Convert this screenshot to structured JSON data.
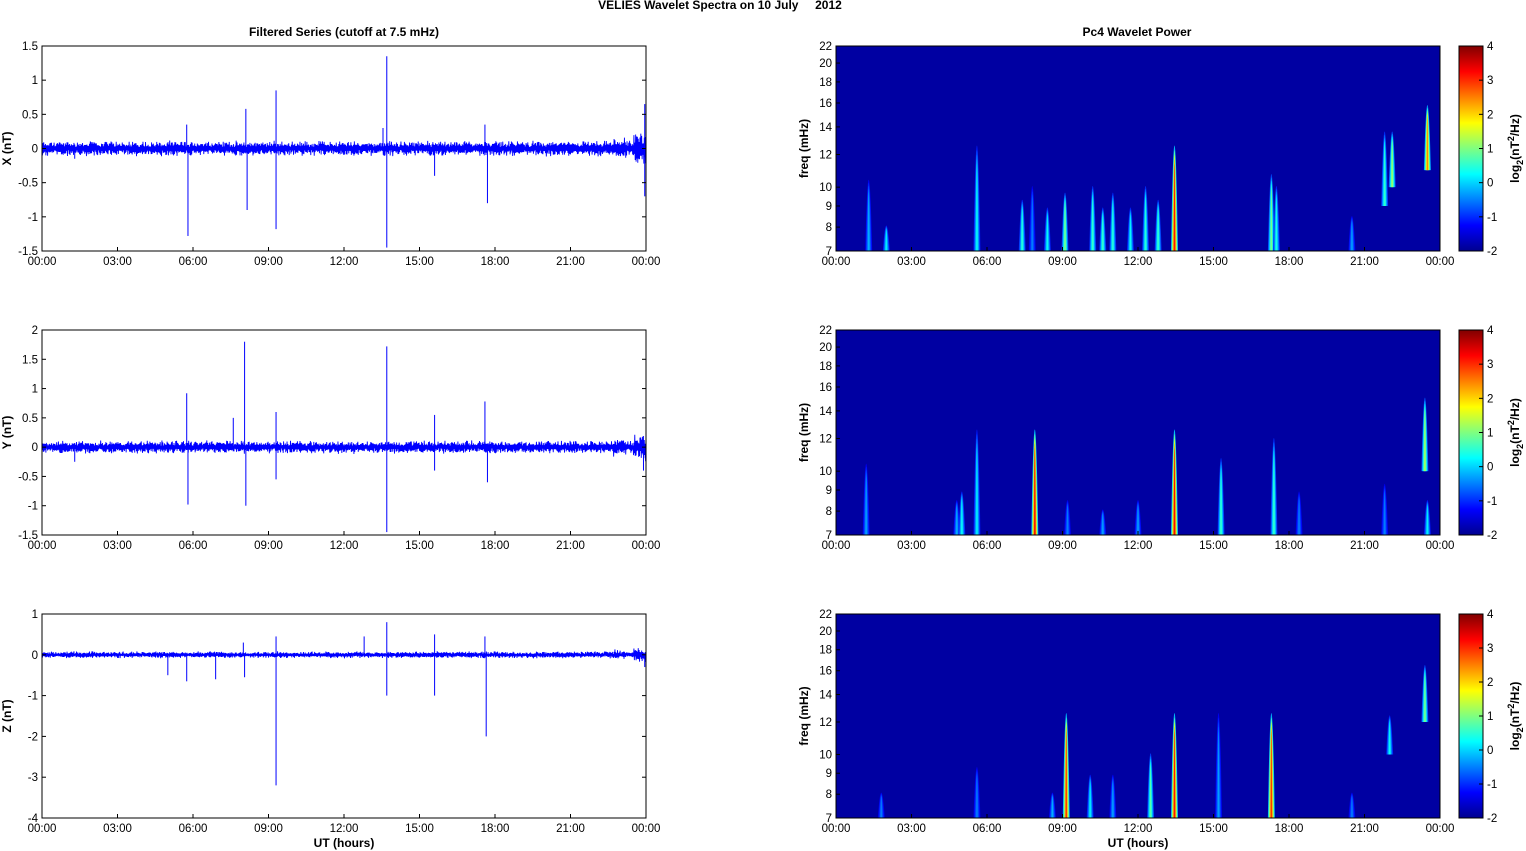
{
  "figure": {
    "main_title": "VELIES Wavelet Spectra on 10 July     2012",
    "left_title": "Filtered Series (cutoff at 7.5 mHz)",
    "right_title": "Pc4 Wavelet Power"
  },
  "chart_data": [
    {
      "type": "line",
      "ylabel": "X (nT)",
      "ylim": [
        -1.5,
        1.5
      ],
      "yticks": [
        "1.5",
        "1",
        "0.5",
        "0",
        "-0.5",
        "-1",
        "-1.5"
      ],
      "xticks": [
        "00:00",
        "03:00",
        "06:00",
        "09:00",
        "12:00",
        "15:00",
        "18:00",
        "21:00",
        "00:00"
      ],
      "xlim_hours": [
        0,
        24
      ],
      "noise_amplitude": 0.12,
      "color": "#0000ff",
      "spikes": [
        [
          1.3,
          -0.15
        ],
        [
          5.75,
          0.35
        ],
        [
          5.8,
          -1.28
        ],
        [
          8.1,
          0.58
        ],
        [
          8.15,
          -0.9
        ],
        [
          9.3,
          0.85
        ],
        [
          9.3,
          -1.18
        ],
        [
          13.7,
          1.35
        ],
        [
          13.7,
          -1.45
        ],
        [
          13.55,
          0.3
        ],
        [
          15.6,
          -0.4
        ],
        [
          17.6,
          0.35
        ],
        [
          17.7,
          -0.8
        ],
        [
          23.95,
          0.65
        ],
        [
          23.95,
          -0.7
        ]
      ]
    },
    {
      "type": "line",
      "ylabel": "Y (nT)",
      "ylim": [
        -1.5,
        2
      ],
      "yticks": [
        "2",
        "1.5",
        "1",
        "0.5",
        "0",
        "-0.5",
        "-1",
        "-1.5"
      ],
      "xticks": [
        "00:00",
        "03:00",
        "06:00",
        "09:00",
        "12:00",
        "15:00",
        "18:00",
        "21:00",
        "00:00"
      ],
      "xlim_hours": [
        0,
        24
      ],
      "noise_amplitude": 0.12,
      "color": "#0000ff",
      "spikes": [
        [
          1.3,
          -0.25
        ],
        [
          5.75,
          0.92
        ],
        [
          5.8,
          -0.98
        ],
        [
          7.6,
          0.5
        ],
        [
          8.05,
          1.8
        ],
        [
          8.1,
          -1.0
        ],
        [
          9.3,
          0.6
        ],
        [
          9.3,
          -0.55
        ],
        [
          13.7,
          1.72
        ],
        [
          13.7,
          -1.45
        ],
        [
          15.6,
          0.55
        ],
        [
          15.6,
          -0.4
        ],
        [
          17.6,
          0.78
        ],
        [
          17.7,
          -0.6
        ],
        [
          23.9,
          -0.4
        ]
      ]
    },
    {
      "type": "line",
      "ylabel": "Z (nT)",
      "ylim": [
        -4,
        1
      ],
      "yticks": [
        "1",
        "0",
        "-1",
        "-2",
        "-3",
        "-4"
      ],
      "xticks": [
        "00:00",
        "03:00",
        "06:00",
        "09:00",
        "12:00",
        "15:00",
        "18:00",
        "21:00",
        "00:00"
      ],
      "xlim_hours": [
        0,
        24
      ],
      "xlabel": "UT (hours)",
      "noise_amplitude": 0.09,
      "color": "#0000ff",
      "spikes": [
        [
          5.0,
          -0.5
        ],
        [
          5.75,
          -0.65
        ],
        [
          6.9,
          -0.6
        ],
        [
          8.0,
          0.3
        ],
        [
          8.05,
          -0.55
        ],
        [
          9.3,
          0.45
        ],
        [
          9.3,
          -3.2
        ],
        [
          12.8,
          0.45
        ],
        [
          13.7,
          0.8
        ],
        [
          13.7,
          -1.0
        ],
        [
          15.6,
          0.5
        ],
        [
          15.6,
          -1.0
        ],
        [
          17.6,
          0.45
        ],
        [
          17.65,
          -2.0
        ],
        [
          23.95,
          -0.3
        ]
      ]
    },
    {
      "type": "heatmap",
      "title_ref": "Pc4 Wavelet Power",
      "ylabel": "freq (mHz)",
      "ylim": [
        7,
        22
      ],
      "ylog": true,
      "yticks": [
        22,
        20,
        18,
        16,
        14,
        12,
        10,
        9,
        8,
        7
      ],
      "xticks": [
        "00:00",
        "03:00",
        "06:00",
        "09:00",
        "12:00",
        "15:00",
        "18:00",
        "21:00",
        "00:00"
      ],
      "xlim_hours": [
        0,
        24
      ],
      "colorbar_label": "log2(nT2/Hz)",
      "colorbar_range": [
        -2,
        4
      ],
      "colorbar_ticks": [
        "4",
        "3",
        "2",
        "1",
        "0",
        "-1",
        "-2"
      ],
      "background_value": -1.8,
      "features": [
        [
          1.3,
          7,
          15,
          -0.2
        ],
        [
          2.0,
          7,
          9,
          0.2
        ],
        [
          5.6,
          7,
          22,
          0.3
        ],
        [
          7.4,
          7,
          12,
          0.5
        ],
        [
          7.8,
          7,
          14,
          -0.5
        ],
        [
          8.4,
          7,
          11,
          0.3
        ],
        [
          9.1,
          7,
          13,
          1.0
        ],
        [
          10.2,
          7,
          14,
          0.6
        ],
        [
          10.6,
          7,
          11,
          0.6
        ],
        [
          11.0,
          7,
          13,
          0.5
        ],
        [
          11.7,
          7,
          11,
          0.3
        ],
        [
          12.3,
          7,
          14,
          0.5
        ],
        [
          12.8,
          7,
          12,
          0.6
        ],
        [
          13.45,
          7,
          22,
          3.2
        ],
        [
          17.3,
          7,
          16,
          1.0
        ],
        [
          17.5,
          7,
          14,
          0.4
        ],
        [
          20.5,
          7,
          10,
          -0.3
        ],
        [
          21.8,
          9,
          20,
          0.6
        ],
        [
          22.1,
          10,
          18,
          1.2
        ],
        [
          23.5,
          11,
          22,
          2.5
        ]
      ]
    },
    {
      "type": "heatmap",
      "title_ref": "",
      "ylabel": "freq (mHz)",
      "ylim": [
        7,
        22
      ],
      "ylog": true,
      "yticks": [
        22,
        20,
        18,
        16,
        14,
        12,
        10,
        9,
        8,
        7
      ],
      "xticks": [
        "00:00",
        "03:00",
        "06:00",
        "09:00",
        "12:00",
        "15:00",
        "18:00",
        "21:00",
        "00:00"
      ],
      "xlim_hours": [
        0,
        24
      ],
      "colorbar_label": "log2(nT2/Hz)",
      "colorbar_range": [
        -2,
        4
      ],
      "colorbar_ticks": [
        "4",
        "3",
        "2",
        "1",
        "0",
        "-1",
        "-2"
      ],
      "background_value": -1.8,
      "features": [
        [
          1.2,
          7,
          15,
          -0.3
        ],
        [
          4.8,
          7,
          10,
          -0.2
        ],
        [
          5.0,
          7,
          11,
          0.3
        ],
        [
          5.6,
          7,
          22,
          0.2
        ],
        [
          7.9,
          7,
          22,
          3.3
        ],
        [
          9.2,
          7,
          10,
          -0.5
        ],
        [
          10.6,
          7,
          9,
          -0.3
        ],
        [
          12.0,
          7,
          10,
          -0.3
        ],
        [
          13.45,
          7,
          22,
          3.3
        ],
        [
          15.3,
          7,
          16,
          0.6
        ],
        [
          17.4,
          7,
          20,
          0.6
        ],
        [
          18.4,
          7,
          11,
          -0.5
        ],
        [
          21.8,
          7,
          12,
          -0.5
        ],
        [
          23.4,
          10,
          22,
          1.3
        ],
        [
          23.5,
          7,
          10,
          0.2
        ]
      ]
    },
    {
      "type": "heatmap",
      "title_ref": "",
      "ylabel": "freq (mHz)",
      "xlabel": "UT (hours)",
      "ylim": [
        7,
        22
      ],
      "ylog": true,
      "yticks": [
        22,
        20,
        18,
        16,
        14,
        12,
        10,
        9,
        8,
        7
      ],
      "xticks": [
        "00:00",
        "03:00",
        "06:00",
        "09:00",
        "12:00",
        "15:00",
        "18:00",
        "21:00",
        "00:00"
      ],
      "xlim_hours": [
        0,
        24
      ],
      "colorbar_label": "log2(nT2/Hz)",
      "colorbar_range": [
        -2,
        4
      ],
      "colorbar_ticks": [
        "4",
        "3",
        "2",
        "1",
        "0",
        "-1",
        "-2"
      ],
      "background_value": -1.8,
      "features": [
        [
          1.8,
          7,
          9,
          -0.5
        ],
        [
          5.6,
          7,
          12,
          -0.5
        ],
        [
          8.6,
          7,
          9,
          -0.2
        ],
        [
          9.15,
          7,
          22,
          3.0
        ],
        [
          10.1,
          7,
          11,
          0.2
        ],
        [
          11.0,
          7,
          11,
          -0.3
        ],
        [
          12.5,
          7,
          14,
          0.8
        ],
        [
          13.45,
          7,
          22,
          3.2
        ],
        [
          15.2,
          7,
          22,
          -0.3
        ],
        [
          17.3,
          7,
          22,
          3.0
        ],
        [
          20.5,
          7,
          9,
          -0.5
        ],
        [
          22.0,
          10,
          15,
          0.3
        ],
        [
          23.4,
          12,
          22,
          1.0
        ]
      ]
    }
  ]
}
